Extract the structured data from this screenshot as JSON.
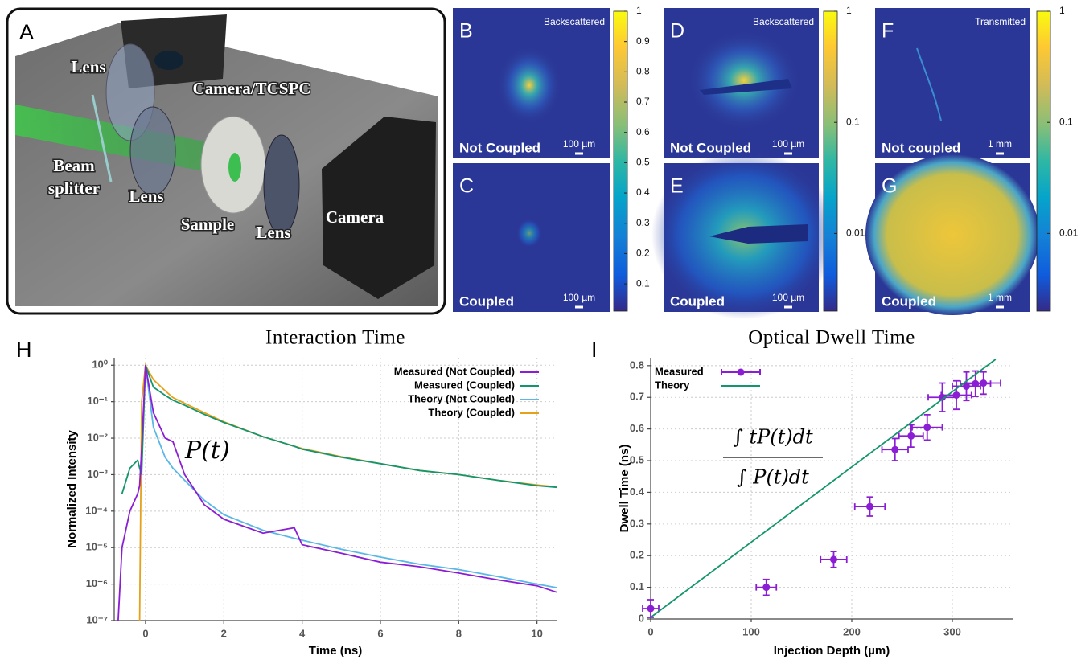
{
  "schematic": {
    "label": "A",
    "parts": [
      "Lens",
      "Camera/TCSPC",
      "Beam",
      "splitter",
      "Lens",
      "Sample",
      "Lens",
      "Camera"
    ]
  },
  "panels": [
    {
      "label": "B",
      "top": "Backscattered",
      "bottom": "Not Coupled",
      "scale": "100 µm"
    },
    {
      "label": "C",
      "bottom": "Coupled",
      "scale": "100 µm"
    },
    {
      "label": "D",
      "top": "Backscattered",
      "bottom": "Not Coupled",
      "scale": "100 µm"
    },
    {
      "label": "E",
      "bottom": "Coupled",
      "scale": "100 µm"
    },
    {
      "label": "F",
      "top": "Transmitted",
      "bottom": "Not coupled",
      "scale": "1 mm"
    },
    {
      "label": "G",
      "bottom": "Coupled",
      "scale": "1 mm"
    }
  ],
  "colorbars": [
    {
      "lim": [
        0.01,
        1
      ],
      "ticks": [
        0.1,
        0.2,
        0.3,
        0.4,
        0.5,
        0.6,
        0.7,
        0.8,
        0.9,
        1
      ]
    },
    {
      "lim": [
        0.002,
        1
      ],
      "log": true,
      "ticks": [
        0.01,
        0.1,
        1
      ]
    },
    {
      "lim": [
        0.002,
        1
      ],
      "log": true,
      "ticks": [
        0.01,
        0.1,
        1
      ]
    }
  ],
  "chart_data": [
    {
      "type": "line",
      "panel": "H",
      "title": "Interaction Time",
      "x_label": "Time (ns)",
      "y_label": "Normalized Intensity",
      "annotation": "P(t)",
      "log_y": true,
      "grid": true,
      "legend": "upper right",
      "xlim": [
        -0.8,
        10.5
      ],
      "ylim": [
        1e-07,
        1.6
      ],
      "xticks": [
        0,
        2,
        4,
        6,
        8,
        10
      ],
      "yticks": [
        {
          "value": 1,
          "label": "10⁰"
        },
        {
          "value": 0.1,
          "label": "10⁻¹"
        },
        {
          "value": 0.01,
          "label": "10⁻²"
        },
        {
          "value": 0.001,
          "label": "10⁻³"
        },
        {
          "value": 0.0001,
          "label": "10⁻⁴"
        },
        {
          "value": 1e-05,
          "label": "10⁻⁵"
        },
        {
          "value": 1e-06,
          "label": "10⁻⁶"
        },
        {
          "value": 1e-07,
          "label": "10⁻⁷"
        }
      ],
      "x": [
        -0.7,
        -0.6,
        -0.4,
        -0.2,
        -0.15,
        -0.1,
        0,
        0.2,
        0.5,
        0.7,
        1,
        1.5,
        2,
        3,
        3.8,
        4,
        5,
        6,
        7,
        8,
        9,
        10,
        10.5
      ],
      "series": [
        {
          "name": "Measured (Not Coupled)",
          "color": "#8b1dd4",
          "values": [
            1e-07,
            1e-05,
            0.0001,
            0.0003,
            0.0005,
            0.005,
            1,
            0.05,
            0.01,
            0.008,
            0.001,
            0.00015,
            6e-05,
            2.5e-05,
            3.5e-05,
            1.2e-05,
            7e-06,
            4e-06,
            3e-06,
            2e-06,
            1.3e-06,
            9e-07,
            6e-07
          ]
        },
        {
          "name": "Measured (Coupled)",
          "color": "#14966c",
          "values": [
            null,
            0.0003,
            0.0015,
            0.0025,
            0.0015,
            0.001,
            1,
            0.25,
            0.15,
            0.11,
            0.08,
            0.045,
            0.027,
            0.011,
            0.006,
            0.005,
            0.003,
            0.002,
            0.0013,
            0.001,
            0.0007,
            0.0005,
            0.00045
          ]
        },
        {
          "name": "Theory (Not Coupled)",
          "color": "#5ab7e6",
          "values": [
            null,
            null,
            null,
            null,
            null,
            null,
            1,
            0.02,
            0.003,
            0.0015,
            0.0007,
            0.0002,
            8e-05,
            3e-05,
            1.8e-05,
            1.6e-05,
            9e-06,
            5.5e-06,
            3.5e-06,
            2.5e-06,
            1.6e-06,
            1e-06,
            8e-07
          ]
        },
        {
          "name": "Theory (Coupled)",
          "color": "#e3a21a",
          "values": [
            null,
            null,
            null,
            null,
            1e-07,
            0.1,
            1,
            0.4,
            0.2,
            0.13,
            0.09,
            0.05,
            0.028,
            0.011,
            0.006,
            0.0052,
            0.0031,
            0.002,
            0.0013,
            0.001,
            0.0007,
            0.00052,
            0.00046
          ]
        }
      ]
    },
    {
      "type": "scatter",
      "panel": "I",
      "title": "Optical Dwell Time",
      "x_label": "Injection Depth (µm)",
      "y_label": "Dwell Time (ns)",
      "annotation": {
        "numerator": "∫ tP(t)dt",
        "denominator": "∫ P(t)dt"
      },
      "grid": true,
      "legend": "upper left",
      "xlim": [
        0,
        360
      ],
      "ylim": [
        0,
        0.825
      ],
      "xticks": [
        0,
        100,
        200,
        300
      ],
      "yticks": [
        0,
        0.1,
        0.2,
        0.3,
        0.4,
        0.5,
        0.6,
        0.7,
        0.8
      ],
      "series": [
        {
          "name": "Measured",
          "mode": "markers",
          "color": "#8b1dd4",
          "x": [
            0,
            115,
            182,
            218,
            243,
            259,
            275,
            290,
            304,
            314,
            323,
            331
          ],
          "values": [
            0.033,
            0.1,
            0.188,
            0.355,
            0.535,
            0.578,
            0.605,
            0.7,
            0.707,
            0.735,
            0.743,
            0.745
          ],
          "xerr": [
            8,
            10,
            13,
            15,
            13,
            12,
            15,
            14,
            15,
            14,
            15,
            17
          ],
          "yerr": [
            0.028,
            0.025,
            0.025,
            0.03,
            0.035,
            0.035,
            0.04,
            0.045,
            0.045,
            0.045,
            0.04,
            0.035
          ]
        },
        {
          "name": "Theory",
          "mode": "line",
          "color": "#14966c",
          "x": [
            0,
            343
          ],
          "values": [
            0.005,
            0.82
          ]
        }
      ]
    }
  ]
}
